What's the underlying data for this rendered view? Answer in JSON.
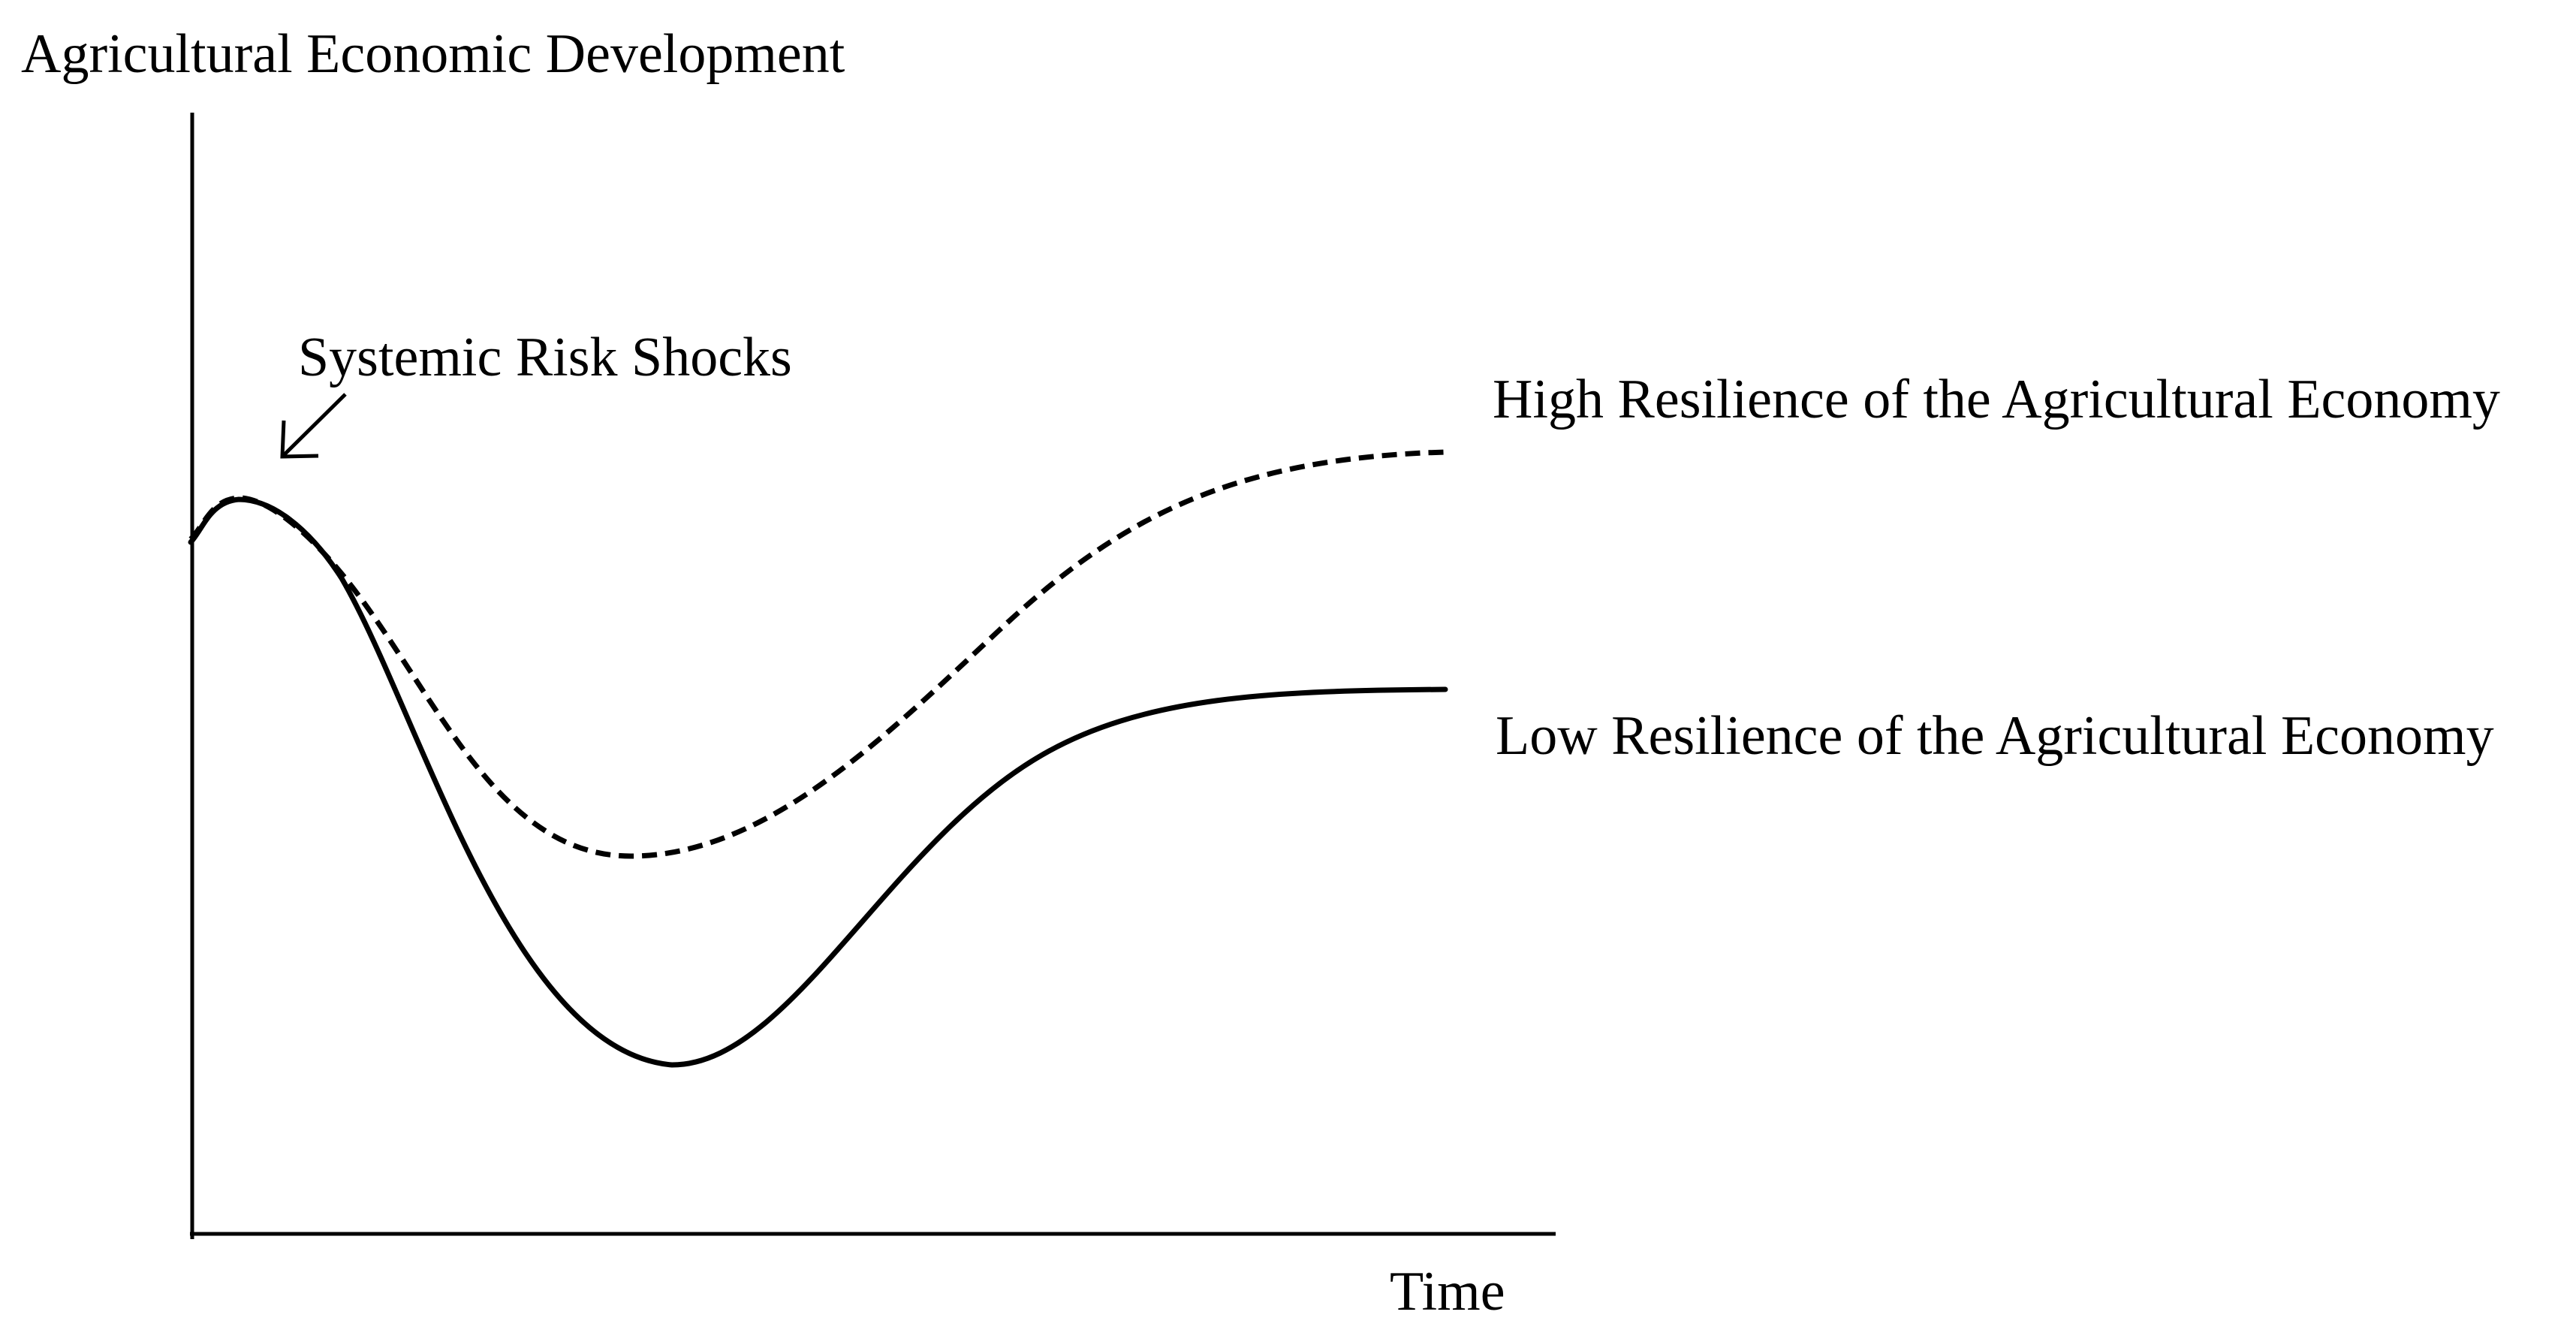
{
  "figure": {
    "y_axis_label": "Agricultural Economic Development",
    "x_axis_label": "Time",
    "shock_annotation": "Systemic Risk Shocks",
    "high_resilience_label": "High Resilience of the Agricultural Economy",
    "low_resilience_label": "Low Resilience of the Agricultural Economy"
  },
  "curves": [
    {
      "key": "high_resilience",
      "style": "dashed",
      "color": "#000000"
    },
    {
      "key": "low_resilience",
      "style": "solid",
      "color": "#000000"
    }
  ]
}
